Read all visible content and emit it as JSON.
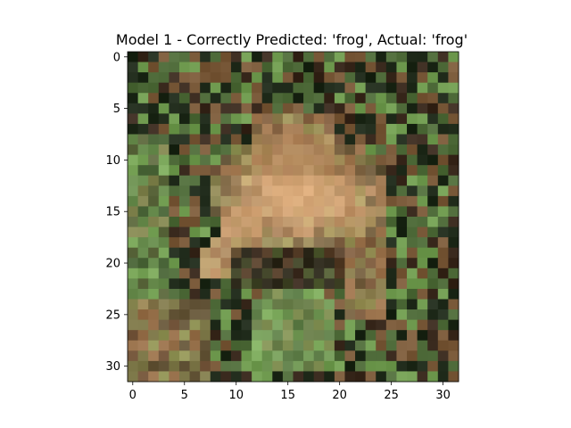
{
  "chart_data": {
    "type": "heatmap",
    "title": "Model 1 - Correctly Predicted: 'frog', Actual: 'frog'",
    "xlabel": "",
    "ylabel": "",
    "xlim": [
      -0.5,
      31.5
    ],
    "ylim": [
      31.5,
      -0.5
    ],
    "x_ticks": [
      0,
      5,
      10,
      15,
      20,
      25,
      30
    ],
    "y_ticks": [
      0,
      5,
      10,
      15,
      20,
      25,
      30
    ],
    "grid": false,
    "image_size": [
      32,
      32
    ],
    "image_content": "low-resolution photograph of a frog",
    "palette": {
      "dark_green": "#1f2a1a",
      "moss_green": "#4f6b3a",
      "leaf_green": "#6f9a4f",
      "bright_green": "#8bb86a",
      "brown": "#7a5a3a",
      "light_brown": "#b98a5e",
      "tan": "#d8a878",
      "dark_brown": "#3a2a1e"
    }
  }
}
